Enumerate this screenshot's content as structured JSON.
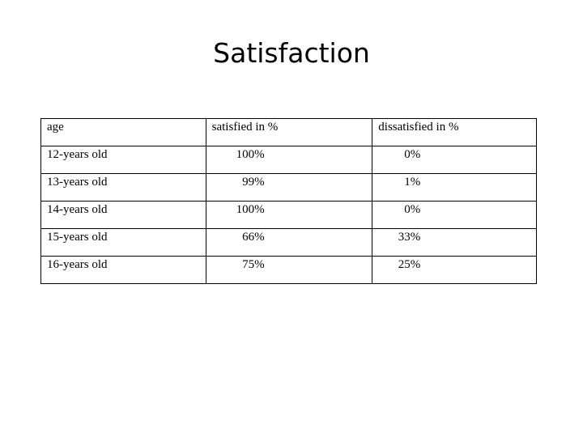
{
  "header": {
    "title": "Satisfaction"
  },
  "table": {
    "columns": [
      "age",
      "satisfied in %",
      "dissatisfied in %"
    ],
    "rows": [
      [
        "12-years old",
        "100%",
        "0%"
      ],
      [
        "13-years old",
        "99%",
        "1%"
      ],
      [
        "14-years old",
        "100%",
        "0%"
      ],
      [
        "15-years old",
        "66%",
        "33%"
      ],
      [
        "16-years old",
        "75%",
        "25%"
      ]
    ]
  }
}
